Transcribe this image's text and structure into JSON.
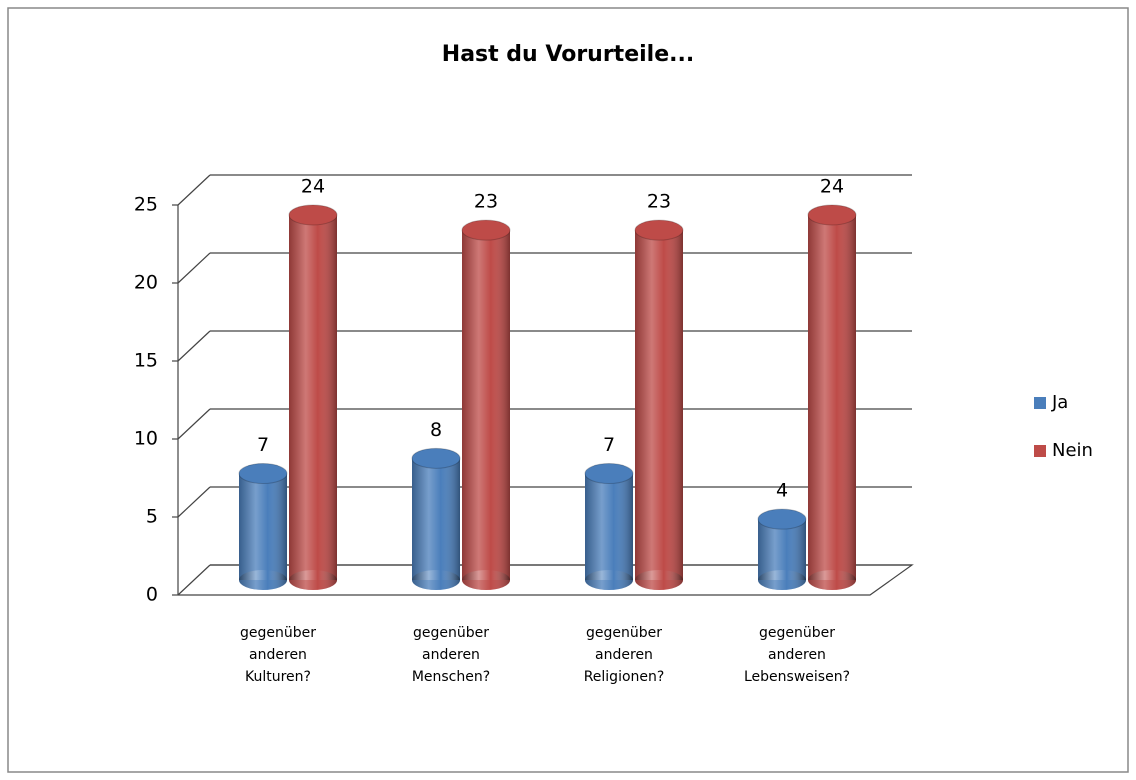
{
  "chart_data": {
    "type": "bar3d",
    "title": "Hast du Vorurteile...",
    "categories": [
      "gegenüber anderen Kulturen?",
      "gegenüber anderen Menschen?",
      "gegenüber anderen Religionen?",
      "gegenüber anderen Lebensweisen?"
    ],
    "series": [
      {
        "name": "Ja",
        "color": "#4a7ebb",
        "values": [
          7,
          8,
          7,
          4
        ]
      },
      {
        "name": "Nein",
        "color": "#be4b48",
        "values": [
          24,
          23,
          23,
          24
        ]
      }
    ],
    "ylim": [
      0,
      25
    ],
    "yticks": [
      0,
      5,
      10,
      15,
      20,
      25
    ],
    "grid": true,
    "legend": "right"
  }
}
